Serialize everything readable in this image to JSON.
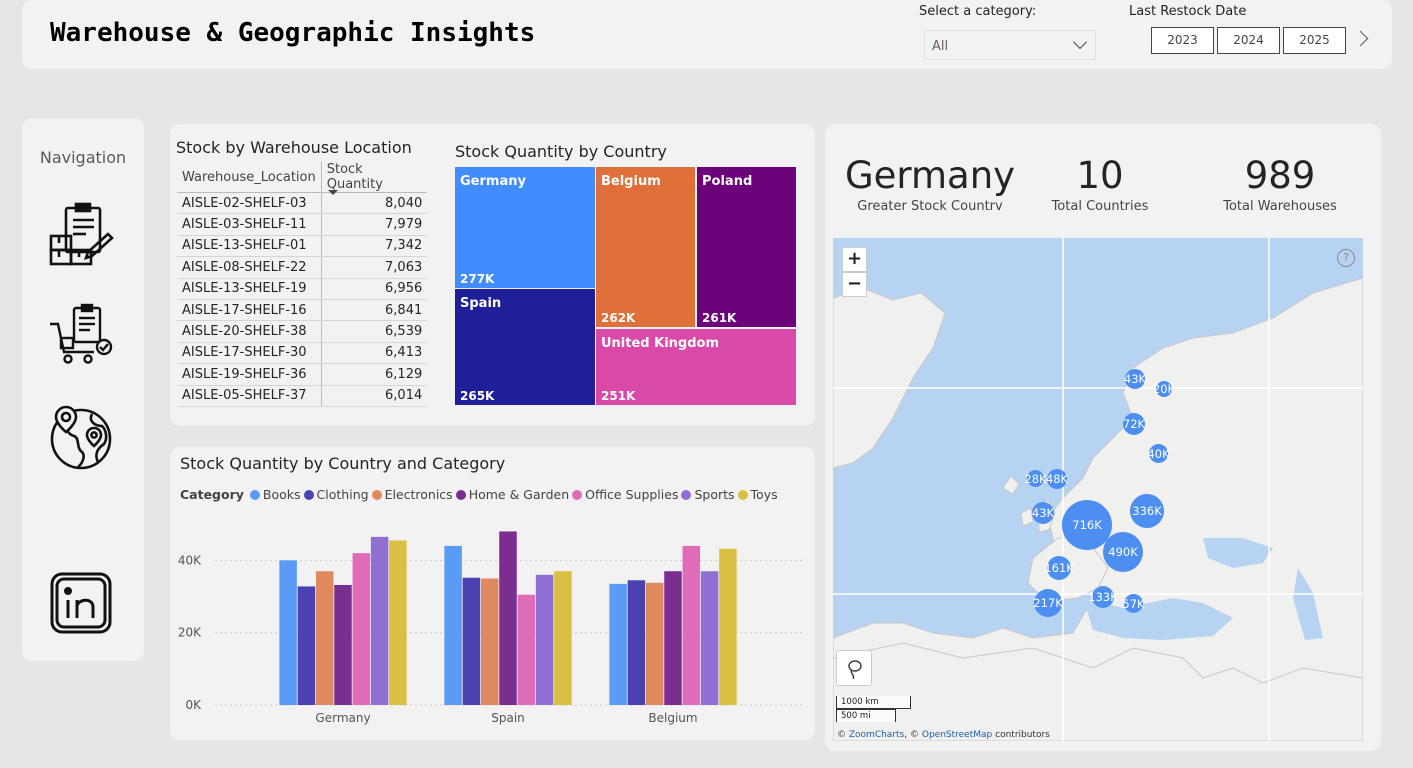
{
  "header": {
    "title": "Warehouse & Geographic Insights",
    "category_label": "Select a category:",
    "category_value": "All",
    "restock_label": "Last Restock Date",
    "years": [
      "2023",
      "2024",
      "2025"
    ]
  },
  "nav": {
    "title": "Navigation",
    "items": [
      "inventory-icon",
      "delivery-cart-icon",
      "globe-map-icon",
      "linkedin-icon"
    ]
  },
  "stock_table": {
    "title": "Stock by Warehouse Location",
    "columns": [
      "Warehouse_Location",
      "Stock Quantity"
    ],
    "rows": [
      [
        "AISLE-02-SHELF-03",
        "8,040"
      ],
      [
        "AISLE-03-SHELF-11",
        "7,979"
      ],
      [
        "AISLE-13-SHELF-01",
        "7,342"
      ],
      [
        "AISLE-08-SHELF-22",
        "7,063"
      ],
      [
        "AISLE-13-SHELF-19",
        "6,956"
      ],
      [
        "AISLE-17-SHELF-16",
        "6,841"
      ],
      [
        "AISLE-20-SHELF-38",
        "6,539"
      ],
      [
        "AISLE-17-SHELF-30",
        "6,413"
      ],
      [
        "AISLE-19-SHELF-36",
        "6,129"
      ],
      [
        "AISLE-05-SHELF-37",
        "6,014"
      ]
    ]
  },
  "treemap": {
    "title": "Stock Quantity by Country",
    "cells": [
      {
        "name": "Germany",
        "value": "277K",
        "color": "#418cff"
      },
      {
        "name": "Spain",
        "value": "265K",
        "color": "#1f1f99"
      },
      {
        "name": "Belgium",
        "value": "262K",
        "color": "#e0703a"
      },
      {
        "name": "Poland",
        "value": "261K",
        "color": "#6b027a"
      },
      {
        "name": "United Kingdom",
        "value": "251K",
        "color": "#d94aa8"
      }
    ]
  },
  "bar_chart": {
    "title": "Stock Quantity by Country and Category",
    "legend_title": "Category"
  },
  "chart_data": {
    "type": "bar",
    "title": "Stock Quantity by Country and Category",
    "categories": [
      "Germany",
      "Spain",
      "Belgium"
    ],
    "series": [
      {
        "name": "Books",
        "color": "#5a9cf5",
        "values": [
          40000,
          44000,
          33500
        ]
      },
      {
        "name": "Clothing",
        "color": "#4a42b0",
        "values": [
          32800,
          35200,
          34500
        ]
      },
      {
        "name": "Electronics",
        "color": "#e0895f",
        "values": [
          37000,
          35000,
          33800
        ]
      },
      {
        "name": "Home & Garden",
        "color": "#7a2e8f",
        "values": [
          33200,
          48000,
          37000
        ]
      },
      {
        "name": "Office Supplies",
        "color": "#de6cb8",
        "values": [
          42000,
          30500,
          44000
        ]
      },
      {
        "name": "Sports",
        "color": "#8f6fd4",
        "values": [
          46500,
          36000,
          37000
        ]
      },
      {
        "name": "Toys",
        "color": "#d9bf43",
        "values": [
          45500,
          37000,
          43200
        ]
      }
    ],
    "ylim": [
      0,
      52000
    ],
    "yticks": [
      0,
      20000,
      40000
    ],
    "ytick_labels": [
      "0K",
      "20K",
      "40K"
    ],
    "grid": true,
    "legend": "top-left"
  },
  "kpis": [
    {
      "value": "Germany",
      "label": "Greater Stock Countrv"
    },
    {
      "value": "10",
      "label": "Total Countries"
    },
    {
      "value": "989",
      "label": "Total Warehouses"
    }
  ],
  "map": {
    "zoom_in": "+",
    "zoom_out": "−",
    "help": "?",
    "scale_km": "1000 km",
    "scale_mi": "500 mi",
    "attrib_prefix": "©",
    "attrib_zoom": "ZoomCharts",
    "attrib_mid": ", ©",
    "attrib_osm": "OpenStreetMap",
    "attrib_suffix": "contributors",
    "bubbles": [
      "43K",
      "20K",
      "72K",
      "40K",
      "28K",
      "48K",
      "43K",
      "716K",
      "336K",
      "490K",
      "161K",
      "217K",
      "133K",
      "57K"
    ]
  }
}
